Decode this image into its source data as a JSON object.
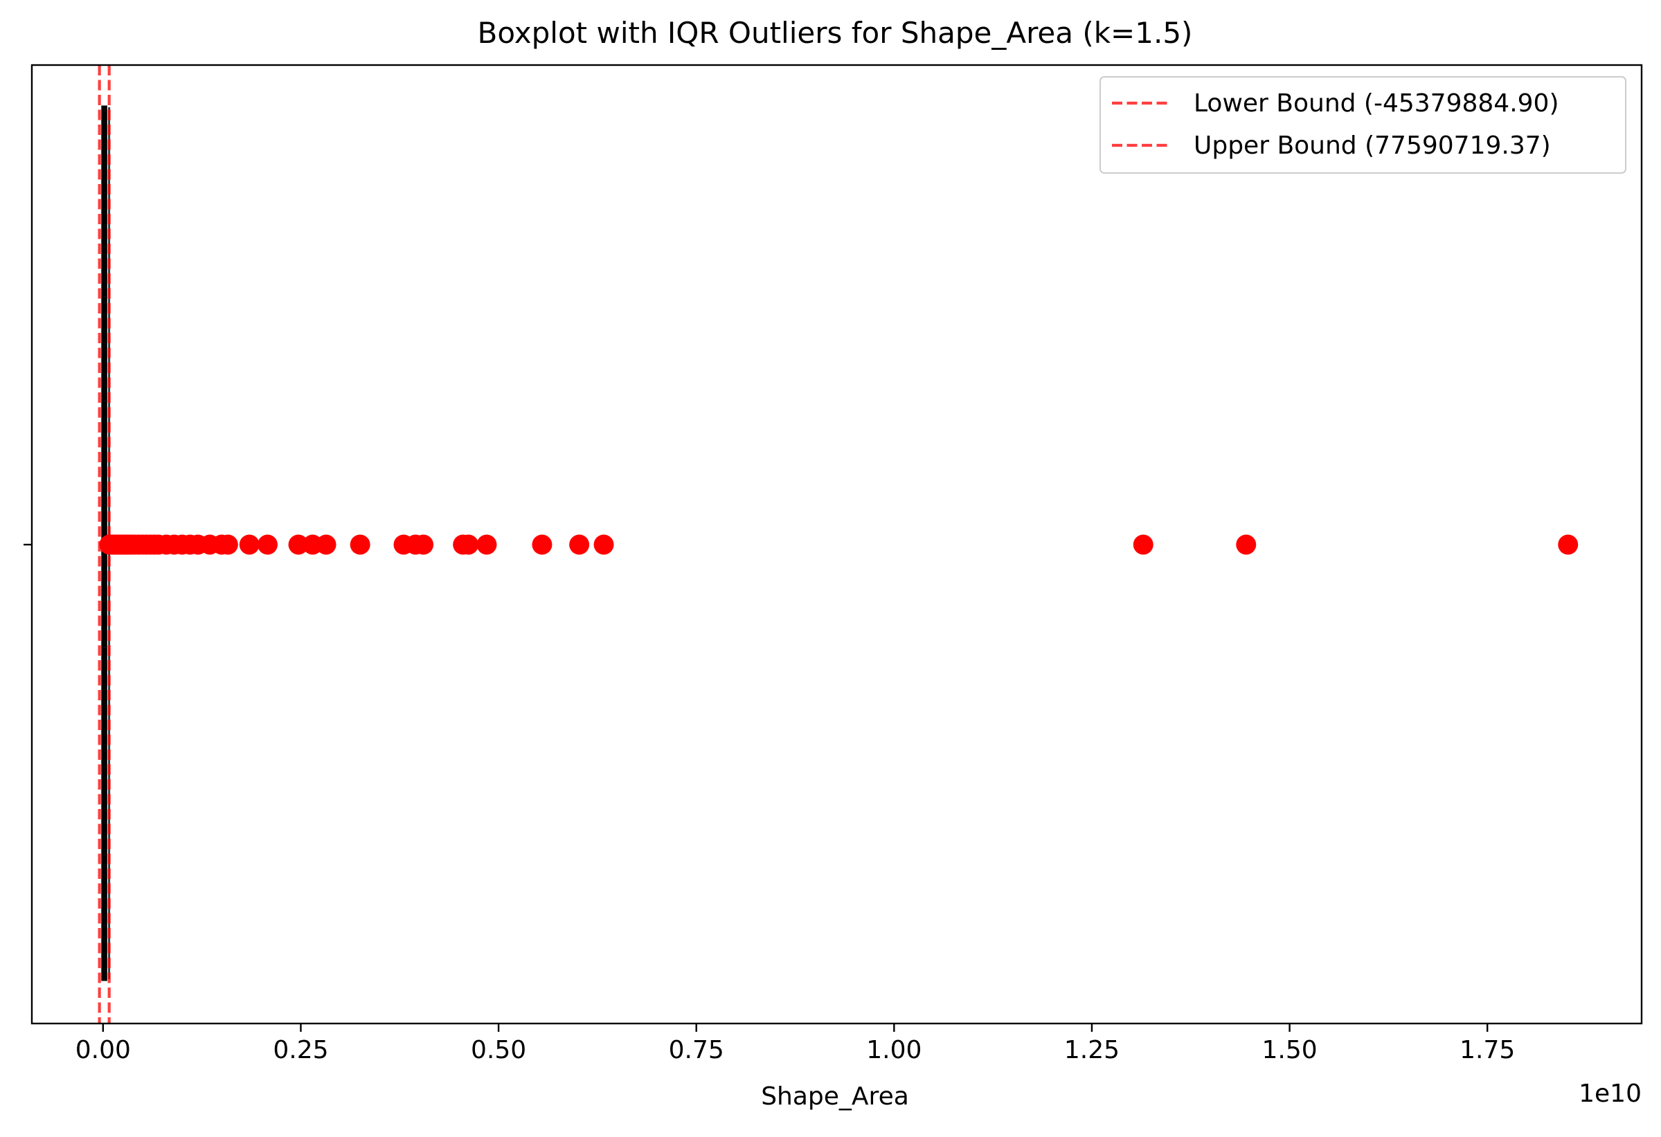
{
  "chart_data": {
    "type": "scatter",
    "subtype": "horizontal-boxplot-with-outliers",
    "title": "Boxplot with IQR Outliers for Shape_Area (k=1.5)",
    "xlabel": "Shape_Area",
    "ylabel": "",
    "x_scale_factor": 10000000000,
    "x_offset_label": "1e10",
    "xlim": [
      -0.09,
      1.945
    ],
    "x_ticks": [
      0.0,
      0.25,
      0.5,
      0.75,
      1.0,
      1.25,
      1.5,
      1.75
    ],
    "x_tick_labels": [
      "0.00",
      "0.25",
      "0.50",
      "0.75",
      "1.00",
      "1.25",
      "1.50",
      "1.75"
    ],
    "grid": false,
    "legend_position": "top-right",
    "box": {
      "q1": 0.0,
      "median": 0.0008,
      "q3": 0.0031,
      "whisker_low": 0.0,
      "whisker_high": 0.0077,
      "color": "#000000"
    },
    "reference_lines": [
      {
        "name": "Lower Bound (-45379884.90)",
        "value": -0.0045379884,
        "color": "#ff0000",
        "style": "dashed"
      },
      {
        "name": "Upper Bound (77590719.37)",
        "value": 0.0077590719,
        "color": "#ff0000",
        "style": "dashed"
      }
    ],
    "series": [
      {
        "role": "outliers",
        "color": "#ff0000",
        "x": [
          0.008,
          0.01,
          0.012,
          0.014,
          0.016,
          0.018,
          0.02,
          0.022,
          0.025,
          0.028,
          0.03,
          0.033,
          0.036,
          0.04,
          0.045,
          0.05,
          0.055,
          0.06,
          0.065,
          0.07,
          0.08,
          0.09,
          0.1,
          0.11,
          0.12,
          0.135,
          0.15,
          0.158,
          0.185,
          0.208,
          0.247,
          0.265,
          0.282,
          0.325,
          0.38,
          0.395,
          0.405,
          0.455,
          0.462,
          0.485,
          0.555,
          0.602,
          0.633,
          1.315,
          1.445,
          1.852
        ]
      }
    ]
  }
}
